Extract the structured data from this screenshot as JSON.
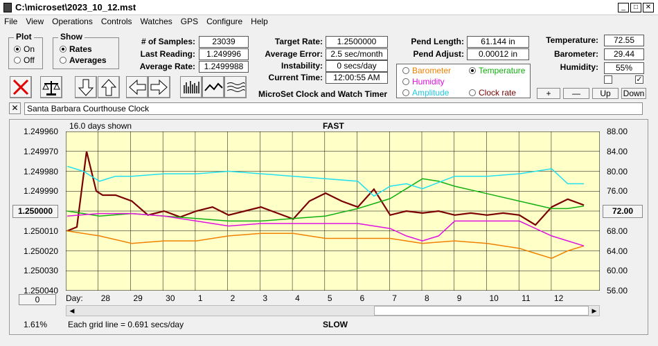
{
  "window": {
    "title": "C:\\microset\\2023_10_12.mst"
  },
  "menu": [
    "File",
    "View",
    "Operations",
    "Controls",
    "Watches",
    "GPS",
    "Configure",
    "Help"
  ],
  "plot": {
    "label": "Plot",
    "on": "On",
    "off": "Off"
  },
  "show": {
    "label": "Show",
    "rates": "Rates",
    "averages": "Averages"
  },
  "stats": {
    "samples_label": "# of Samples:",
    "samples": "23039",
    "last_label": "Last Reading:",
    "last": "1.249996",
    "avg_label": "Average Rate:",
    "avg": "1.2499988"
  },
  "target": {
    "rate_label": "Target Rate:",
    "rate": "1.2500000",
    "err_label": "Average Error:",
    "err": "2.5 sec/month",
    "inst_label": "Instability:",
    "inst": "0 secs/day",
    "time_label": "Current Time:",
    "time": "12:00:55 AM",
    "caption": "MicroSet Clock and Watch Timer"
  },
  "pend": {
    "len_label": "Pend Length:",
    "len": "61.144 in",
    "adj_label": "Pend Adjust:",
    "adj": "0.00012 in"
  },
  "aux": {
    "barometer": "Barometer",
    "temperature": "Temperature",
    "humidity": "Humidity",
    "amplitude": "Amplitude",
    "clock_rate": "Clock rate"
  },
  "env": {
    "temp_label": "Temperature:",
    "temp": "72.55",
    "baro_label": "Barometer:",
    "baro": "29.44",
    "hum_label": "Humidity:",
    "hum": "55%"
  },
  "adjust_buttons": {
    "plus": "+",
    "minus": "—",
    "up": "Up",
    "down": "Down"
  },
  "clock_name": "Santa Barbara Courthouse Clock",
  "chart_labels": {
    "days_shown": "16.0 days shown",
    "fast": "FAST",
    "slow": "SLOW",
    "center_value": "1.250000",
    "right_center": "72.00",
    "bottom_btn": "0",
    "percent": "1.61%",
    "grid_note": "Each grid line = 0.691 secs/day",
    "day_label": "Day:"
  },
  "colors": {
    "plot_bg": "#ffffc8",
    "rate": "#7a0000",
    "temperature": "#10b010",
    "barometer": "#f08000",
    "humidity": "#e010e0",
    "amplitude": "#20e0f0"
  },
  "chart_data": {
    "type": "line",
    "title": "FAST",
    "x_days": [
      "28",
      "29",
      "30",
      "1",
      "2",
      "3",
      "4",
      "5",
      "6",
      "7",
      "8",
      "9",
      "10",
      "11",
      "12"
    ],
    "y_left_ticks": [
      "1.249960",
      "1.249970",
      "1.249980",
      "1.249990",
      "1.250000",
      "1.250010",
      "1.250020",
      "1.250030",
      "1.250040"
    ],
    "y_right_ticks": [
      "88.00",
      "84.00",
      "80.00",
      "76.00",
      "72.00",
      "68.00",
      "64.00",
      "60.00",
      "56.00"
    ],
    "ylim_left": [
      1.24996,
      1.25004
    ],
    "ylim_right": [
      56,
      88
    ],
    "grid": true,
    "series": [
      {
        "name": "Rate",
        "axis": "left",
        "color": "#7a0000",
        "x": [
          0,
          0.3,
          0.6,
          0.9,
          1.1,
          1.5,
          2,
          2.5,
          3,
          3.5,
          4,
          4.5,
          5,
          5.5,
          6,
          6.5,
          7,
          7.5,
          8,
          8.5,
          9,
          9.5,
          10,
          10.5,
          11,
          11.5,
          12,
          12.5,
          13,
          13.5,
          14,
          14.5,
          15,
          15.5,
          16
        ],
        "y": [
          1.25001,
          1.250008,
          1.24997,
          1.24999,
          1.249992,
          1.249992,
          1.249995,
          1.250002,
          1.25,
          1.250003,
          1.25,
          1.249998,
          1.250002,
          1.25,
          1.249998,
          1.250001,
          1.250004,
          1.249995,
          1.249991,
          1.249995,
          1.249998,
          1.249989,
          1.250002,
          1.25,
          1.250001,
          1.25,
          1.250002,
          1.250001,
          1.250002,
          1.250001,
          1.250002,
          1.250007,
          1.249998,
          1.249994,
          1.249997
        ]
      },
      {
        "name": "Temperature",
        "axis": "right",
        "color": "#10b010",
        "x": [
          0,
          1,
          2,
          3,
          4,
          5,
          6,
          7,
          8,
          9,
          10,
          10.5,
          11,
          11.5,
          12,
          13,
          14,
          15,
          15.5,
          16
        ],
        "y": [
          72,
          71,
          71.5,
          71,
          70.5,
          70,
          70,
          70.5,
          71,
          72.5,
          74.5,
          76.5,
          78.5,
          78,
          77,
          75.5,
          74,
          72.5,
          72.5,
          73
        ]
      },
      {
        "name": "Barometer",
        "axis": "right",
        "color": "#f08000",
        "x": [
          0,
          1,
          2,
          3,
          4,
          5,
          6,
          7,
          8,
          9,
          10,
          11,
          12,
          13,
          14,
          15,
          15.5,
          16
        ],
        "y": [
          68,
          67,
          65.5,
          66,
          66,
          67,
          67.5,
          67.5,
          66.5,
          66.5,
          66.5,
          65.5,
          66,
          65.5,
          64.5,
          62.5,
          64,
          65
        ]
      },
      {
        "name": "Humidity",
        "axis": "right",
        "color": "#e010e0",
        "x": [
          0,
          1,
          2,
          3,
          4,
          5,
          6,
          7,
          8,
          9,
          10,
          10.5,
          11,
          11.5,
          12,
          13,
          14,
          15,
          15.5,
          16
        ],
        "y": [
          71,
          71.5,
          71.5,
          71,
          70,
          69,
          69.5,
          69.5,
          69.5,
          69.5,
          68.5,
          67,
          66,
          67,
          70,
          70,
          70,
          67,
          66,
          65
        ]
      },
      {
        "name": "Amplitude",
        "axis": "right",
        "color": "#20e0f0",
        "x": [
          0,
          0.5,
          1,
          1.5,
          2,
          3,
          4,
          5,
          6,
          7,
          8,
          9,
          9.5,
          10,
          10.5,
          11,
          12,
          13,
          14,
          15,
          15.5,
          16
        ],
        "y": [
          81,
          80,
          78,
          79,
          79,
          79.5,
          79.5,
          80,
          79.5,
          79,
          78.5,
          78,
          75,
          77,
          77.5,
          76.5,
          79,
          79,
          79.5,
          80.5,
          77.5,
          77.5
        ]
      }
    ]
  }
}
